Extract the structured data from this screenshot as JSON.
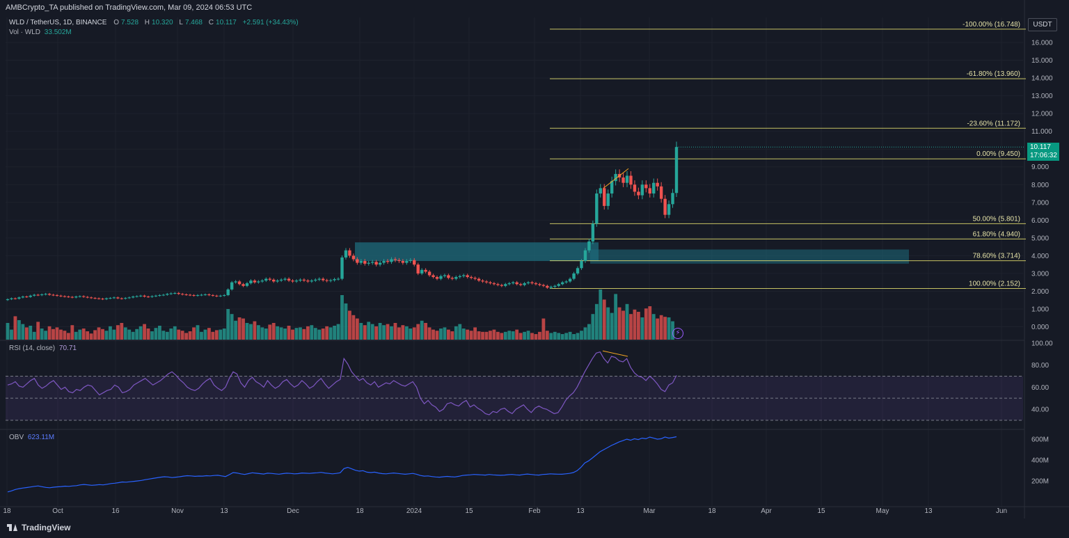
{
  "header": {
    "published": "AMBCrypto_TA published on TradingView.com, Mar 09, 2024 06:53 UTC"
  },
  "legend": {
    "symbol": "WLD / TetherUS, 1D, BINANCE",
    "o_label": "O",
    "o_value": "7.528",
    "h_label": "H",
    "h_value": "10.320",
    "l_label": "L",
    "l_value": "7.468",
    "c_label": "C",
    "c_value": "10.117",
    "change": "+2.591 (+34.43%)",
    "vol_label": "Vol · WLD",
    "vol_value": "33.502M"
  },
  "rsi_legend": {
    "label": "RSI (14, close)",
    "value": "70.71"
  },
  "obv_legend": {
    "label": "OBV",
    "value": "623.11M"
  },
  "currency": "USDT",
  "last_price": {
    "price": "10.117",
    "countdown": "17:06:32"
  },
  "footer": {
    "brand": "TradingView"
  },
  "colors": {
    "up": "#26a69a",
    "down": "#ef5350",
    "fib": "#e6e06e",
    "rsi": "#7e57c2",
    "obv": "#2962ff",
    "zone": "#1e6b7b"
  },
  "chart_data": [
    {
      "type": "candlestick",
      "title": "WLD / TetherUS, 1D, BINANCE",
      "ylim": [
        -0.5,
        17.2
      ],
      "y_ticks": [
        "0.000",
        "1.000",
        "2.000",
        "3.000",
        "4.000",
        "5.000",
        "6.000",
        "7.000",
        "8.000",
        "9.000",
        "10.000",
        "11.000",
        "12.000",
        "13.000",
        "14.000",
        "15.000",
        "16.000"
      ],
      "x_ticks": [
        "18",
        "Oct",
        "16",
        "Nov",
        "13",
        "Dec",
        "18",
        "2024",
        "15",
        "Feb",
        "13",
        "Mar",
        "18",
        "Apr",
        "15",
        "May",
        "13",
        "Jun"
      ],
      "close_path": [
        1.55,
        1.6,
        1.58,
        1.65,
        1.7,
        1.68,
        1.75,
        1.8,
        1.78,
        1.82,
        1.85,
        1.8,
        1.78,
        1.75,
        1.72,
        1.7,
        1.68,
        1.65,
        1.7,
        1.72,
        1.68,
        1.65,
        1.62,
        1.6,
        1.58,
        1.55,
        1.6,
        1.62,
        1.65,
        1.6,
        1.58,
        1.62,
        1.65,
        1.7,
        1.72,
        1.75,
        1.7,
        1.68,
        1.72,
        1.75,
        1.78,
        1.8,
        1.85,
        1.88,
        1.9,
        1.85,
        1.82,
        1.8,
        1.78,
        1.75,
        1.78,
        1.8,
        1.82,
        1.78,
        1.75,
        1.72,
        1.75,
        1.78,
        2.1,
        2.5,
        2.55,
        2.4,
        2.3,
        2.45,
        2.6,
        2.5,
        2.55,
        2.6,
        2.7,
        2.65,
        2.55,
        2.6,
        2.65,
        2.7,
        2.6,
        2.55,
        2.6,
        2.65,
        2.6,
        2.55,
        2.6,
        2.65,
        2.7,
        2.62,
        2.58,
        2.62,
        2.68,
        2.7,
        3.9,
        4.3,
        4.0,
        3.8,
        3.6,
        3.7,
        3.55,
        3.6,
        3.65,
        3.5,
        3.6,
        3.7,
        3.65,
        3.8,
        3.75,
        3.7,
        3.6,
        3.7,
        3.75,
        3.5,
        3.0,
        3.2,
        3.1,
        2.9,
        2.8,
        2.7,
        2.85,
        2.9,
        2.75,
        2.7,
        2.8,
        2.85,
        2.9,
        2.8,
        2.75,
        2.7,
        2.6,
        2.55,
        2.5,
        2.45,
        2.4,
        2.35,
        2.3,
        2.4,
        2.45,
        2.5,
        2.4,
        2.35,
        2.45,
        2.5,
        2.45,
        2.4,
        2.35,
        2.3,
        2.2,
        2.25,
        2.3,
        2.4,
        2.5,
        2.55,
        2.7,
        3.0,
        3.3,
        3.7,
        4.3,
        4.8,
        5.8,
        7.5,
        7.8,
        6.8,
        7.5,
        8.2,
        8.6,
        8.4,
        8.1,
        8.5,
        8.0,
        7.6,
        7.4,
        8.0,
        7.8,
        7.5,
        8.1,
        7.9,
        7.2,
        6.3,
        6.9,
        7.53,
        10.117
      ]
    },
    {
      "type": "bar",
      "title": "Vol · WLD",
      "last_value": "33.502M",
      "values": [
        30,
        18,
        42,
        35,
        28,
        22,
        25,
        14,
        32,
        20,
        16,
        24,
        19,
        22,
        18,
        16,
        12,
        26,
        14,
        18,
        20,
        15,
        11,
        17,
        22,
        19,
        16,
        24,
        18,
        26,
        30,
        22,
        18,
        14,
        19,
        24,
        28,
        20,
        15,
        21,
        25,
        16,
        14,
        20,
        24,
        18,
        16,
        12,
        15,
        22,
        26,
        14,
        18,
        21,
        14,
        17,
        18,
        20,
        55,
        46,
        34,
        40,
        38,
        30,
        28,
        33,
        26,
        22,
        20,
        27,
        30,
        24,
        22,
        20,
        25,
        18,
        21,
        22,
        19,
        24,
        26,
        21,
        18,
        20,
        24,
        22,
        25,
        28,
        80,
        65,
        52,
        44,
        38,
        30,
        26,
        32,
        28,
        24,
        30,
        26,
        28,
        24,
        30,
        22,
        26,
        24,
        20,
        22,
        28,
        34,
        30,
        22,
        18,
        16,
        20,
        22,
        18,
        15,
        24,
        28,
        20,
        18,
        16,
        22,
        15,
        14,
        14,
        16,
        18,
        14,
        12,
        14,
        16,
        15,
        18,
        12,
        14,
        16,
        12,
        10,
        14,
        38,
        16,
        12,
        14,
        12,
        10,
        12,
        14,
        10,
        12,
        16,
        22,
        28,
        46,
        64,
        90,
        72,
        58,
        48,
        82,
        58,
        52,
        64,
        46,
        54,
        50,
        40,
        56,
        60,
        46,
        38,
        44,
        41,
        40,
        33
      ],
      "ylim": [
        0,
        100
      ]
    },
    {
      "type": "line",
      "title": "RSI (14, close)",
      "last_value": "70.71",
      "y_ticks": [
        "100.00",
        "80.00",
        "60.00",
        "40.00"
      ],
      "ylim": [
        30,
        100
      ],
      "bands": [
        30,
        50,
        70
      ],
      "values": [
        62,
        63,
        65,
        61,
        60,
        63,
        66,
        68,
        62,
        59,
        61,
        64,
        66,
        62,
        58,
        60,
        56,
        55,
        58,
        57,
        60,
        62,
        61,
        57,
        53,
        55,
        57,
        58,
        62,
        60,
        55,
        56,
        58,
        62,
        64,
        66,
        68,
        65,
        62,
        64,
        66,
        69,
        72,
        74,
        71,
        67,
        64,
        60,
        58,
        57,
        59,
        63,
        66,
        68,
        62,
        59,
        57,
        60,
        68,
        74,
        72,
        64,
        60,
        66,
        69,
        65,
        63,
        60,
        66,
        62,
        59,
        61,
        65,
        67,
        63,
        60,
        62,
        66,
        63,
        59,
        61,
        65,
        68,
        63,
        59,
        62,
        65,
        67,
        86,
        81,
        74,
        70,
        66,
        68,
        64,
        62,
        65,
        60,
        62,
        64,
        63,
        66,
        64,
        62,
        61,
        63,
        65,
        60,
        50,
        45,
        48,
        44,
        42,
        38,
        40,
        45,
        46,
        44,
        43,
        46,
        48,
        42,
        44,
        41,
        39,
        36,
        35,
        38,
        37,
        40,
        41,
        38,
        36,
        40,
        42,
        44,
        40,
        37,
        41,
        43,
        41,
        40,
        38,
        36,
        37,
        42,
        48,
        52,
        55,
        60,
        67,
        74,
        80,
        86,
        91,
        92,
        86,
        82,
        88,
        87,
        84,
        83,
        86,
        78,
        73,
        70,
        69,
        66,
        70,
        67,
        63,
        58,
        56,
        62,
        64,
        70.71
      ]
    },
    {
      "type": "line",
      "title": "OBV",
      "last_value": "623.11M",
      "y_ticks": [
        "600M",
        "400M",
        "200M"
      ],
      "ylim": [
        80,
        660
      ],
      "values": [
        95,
        105,
        118,
        126,
        132,
        137,
        142,
        148,
        152,
        145,
        138,
        135,
        140,
        143,
        146,
        150,
        148,
        152,
        155,
        162,
        166,
        162,
        158,
        161,
        165,
        162,
        168,
        175,
        178,
        183,
        190,
        188,
        192,
        196,
        200,
        205,
        212,
        218,
        224,
        230,
        236,
        240,
        238,
        232,
        236,
        240,
        246,
        250,
        248,
        244,
        247,
        246,
        250,
        248,
        252,
        254,
        248,
        242,
        260,
        280,
        276,
        268,
        262,
        270,
        278,
        274,
        270,
        266,
        274,
        272,
        268,
        265,
        270,
        274,
        272,
        268,
        270,
        276,
        274,
        272,
        276,
        278,
        282,
        276,
        272,
        268,
        272,
        278,
        318,
        330,
        316,
        302,
        294,
        298,
        284,
        280,
        284,
        276,
        270,
        268,
        272,
        276,
        272,
        268,
        264,
        268,
        272,
        264,
        252,
        246,
        248,
        242,
        238,
        236,
        240,
        243,
        240,
        238,
        244,
        252,
        256,
        258,
        262,
        260,
        258,
        256,
        262,
        258,
        256,
        254,
        256,
        260,
        262,
        258,
        256,
        262,
        266,
        262,
        258,
        256,
        262,
        264,
        268,
        266,
        265,
        264,
        268,
        272,
        280,
        298,
        330,
        372,
        392,
        420,
        450,
        480,
        500,
        520,
        540,
        556,
        574,
        586,
        600,
        590,
        604,
        596,
        610,
        604,
        620,
        611,
        600,
        604,
        621,
        610,
        616,
        623.11
      ]
    }
  ],
  "fib_levels": [
    {
      "label": "-100.00% (16.748)",
      "price": 16.748
    },
    {
      "label": "-61.80% (13.960)",
      "price": 13.96
    },
    {
      "label": "-23.60% (11.172)",
      "price": 11.172
    },
    {
      "label": "0.00% (9.450)",
      "price": 9.45
    },
    {
      "label": "50.00% (5.801)",
      "price": 5.801
    },
    {
      "label": "61.80% (4.940)",
      "price": 4.94
    },
    {
      "label": "78.60% (3.714)",
      "price": 3.714
    },
    {
      "label": "100.00% (2.152)",
      "price": 2.152
    }
  ],
  "zones": [
    {
      "name": "demand-zone-left",
      "from_price": 3.7,
      "to_price": 4.75
    },
    {
      "name": "demand-zone-right",
      "from_price": 3.55,
      "to_price": 4.35
    }
  ]
}
